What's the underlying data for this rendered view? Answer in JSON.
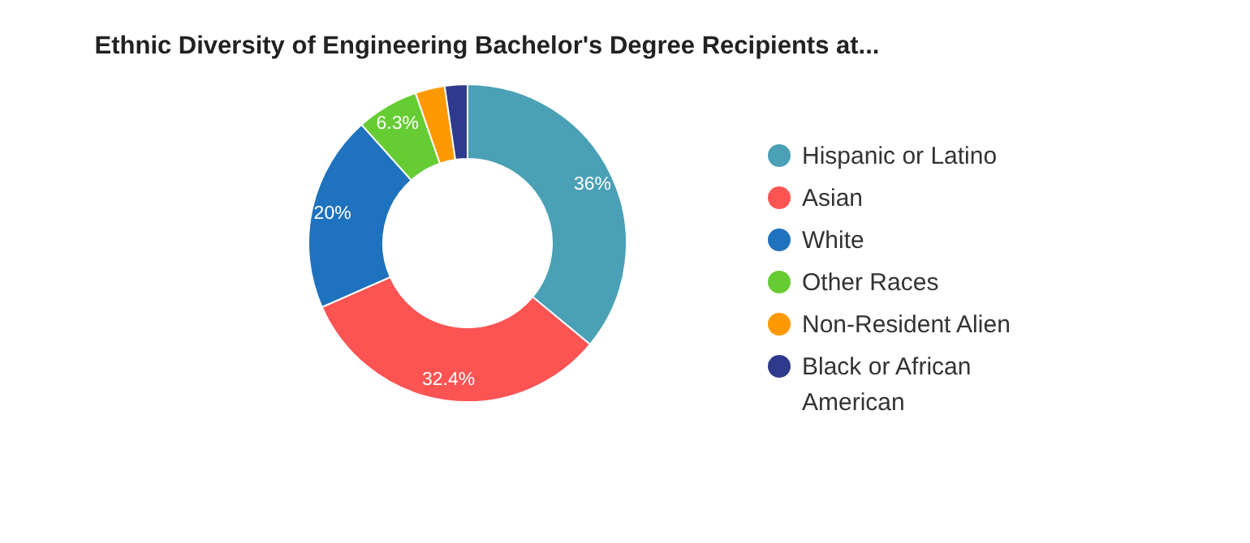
{
  "chart_data": {
    "type": "donut",
    "title": "Ethnic Diversity of Engineering Bachelor's Degree Recipients at...",
    "categories": [
      "Hispanic or Latino",
      "Asian",
      "White",
      "Other Races",
      "Non-Resident Alien",
      "Black or African American"
    ],
    "values": [
      36,
      32.4,
      20,
      6.3,
      3.0,
      2.3
    ],
    "colors": [
      "#4aa0b5",
      "#fc5353",
      "#1f72bd",
      "#66cc33",
      "#ff9900",
      "#2e3a8c"
    ],
    "value_labels": [
      "36%",
      "32.4%",
      "20%",
      "6.3%",
      null,
      null
    ],
    "legend": "right"
  }
}
